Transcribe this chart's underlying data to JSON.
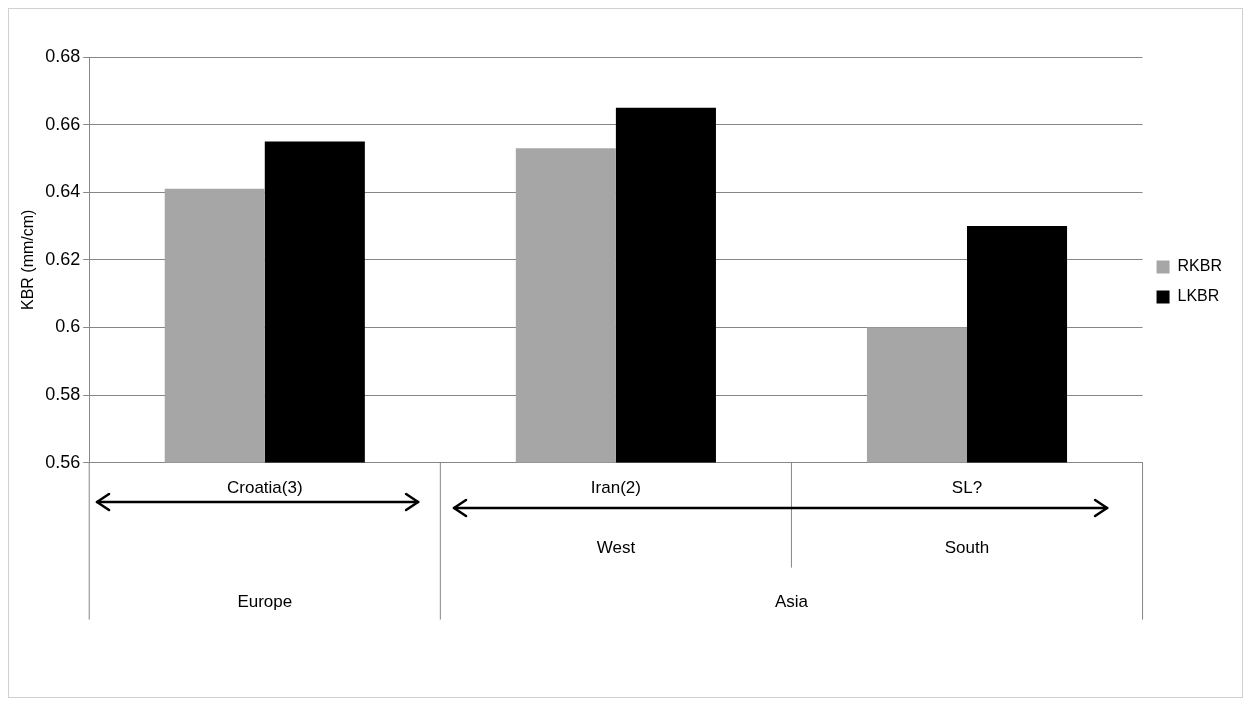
{
  "chart_data": {
    "type": "bar",
    "categories": [
      "Croatia(3)",
      "Iran(2)",
      "SL?"
    ],
    "series": [
      {
        "name": "RKBR",
        "color": "#a6a6a6",
        "values": [
          0.641,
          0.653,
          0.6
        ]
      },
      {
        "name": "LKBR",
        "color": "#000000",
        "values": [
          0.655,
          0.665,
          0.63
        ]
      }
    ],
    "ylabel": "KBR (mm/cm)",
    "ylim": [
      0.56,
      0.68
    ],
    "yticks": [
      0.56,
      0.58,
      0.6,
      0.62,
      0.64,
      0.66,
      0.68
    ],
    "grid": "y",
    "legend": "right",
    "annotations": [
      "West",
      "South",
      "Europe",
      "Asia"
    ]
  }
}
